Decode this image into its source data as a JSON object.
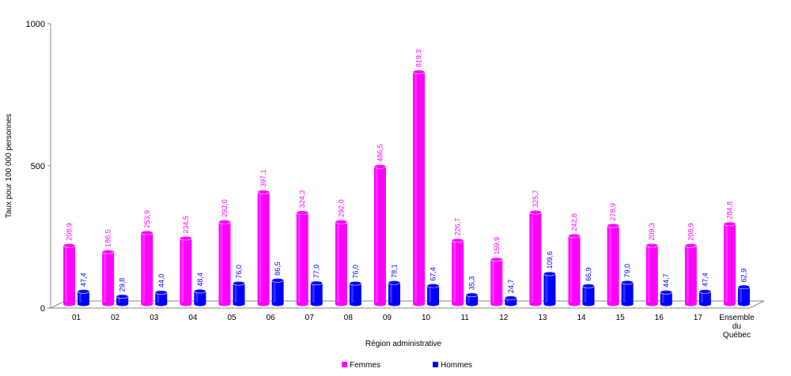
{
  "chart_data": {
    "type": "bar",
    "title": "",
    "xlabel": "Région administrative",
    "ylabel": "Taux pour 100 000 personnes",
    "ylim": [
      0,
      1000
    ],
    "yticks": [
      "0",
      "500",
      "1000"
    ],
    "categories": [
      "01",
      "02",
      "03",
      "04",
      "05",
      "06",
      "07",
      "08",
      "09",
      "10",
      "11",
      "12",
      "13",
      "14",
      "15",
      "16",
      "17",
      "Ensemble du Québec"
    ],
    "grid": false,
    "legend_position": "bottom-center",
    "series": [
      {
        "name": "Femmes",
        "color": "#ff00ff",
        "values": [
          208.9,
          186.5,
          253.9,
          234.5,
          292.0,
          397.1,
          324.3,
          292.0,
          486.5,
          819.3,
          226.7,
          159.9,
          325.7,
          242.8,
          278.9,
          209.3,
          208.9,
          284.8
        ],
        "labels": [
          "208,9",
          "186,5",
          "253,9",
          "234,5",
          "292,0",
          "397,1",
          "324,3",
          "292,0",
          "486,5",
          "819,3",
          "226,7",
          "159,9",
          "325,7",
          "242,8",
          "278,9",
          "209,3",
          "208,9",
          "284,8"
        ]
      },
      {
        "name": "Hommes",
        "color": "#0000ff",
        "values": [
          47.4,
          29.8,
          44.0,
          48.4,
          76.0,
          86.5,
          77.0,
          76.0,
          78.1,
          67.4,
          35.3,
          24.7,
          109.6,
          66.9,
          79.0,
          44.7,
          47.4,
          62.9
        ],
        "labels": [
          "47,4",
          "29,8",
          "44,0",
          "48,4",
          "76,0",
          "86,5",
          "77,0",
          "76,0",
          "78,1",
          "67,4",
          "35,3",
          "24,7",
          "109,6",
          "66,9",
          "79,0",
          "44,7",
          "47,4",
          "62,9"
        ]
      }
    ]
  }
}
